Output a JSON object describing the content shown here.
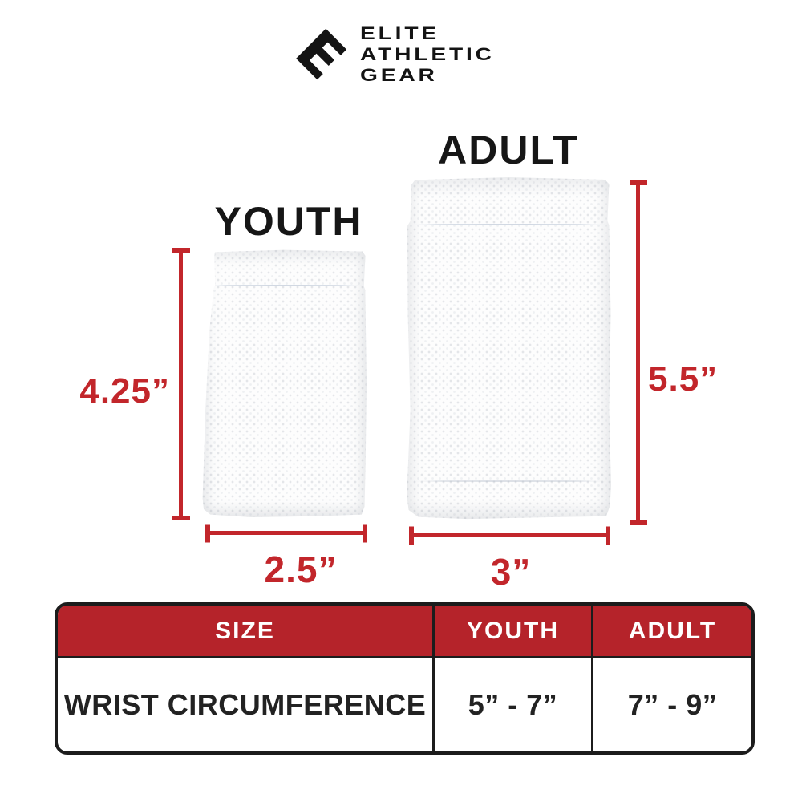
{
  "brand": {
    "logo_letter": "E",
    "name_line1": "ELITE",
    "name_line2": "ATHLETIC",
    "name_line3": "GEAR"
  },
  "diagram": {
    "adult_label": "ADULT",
    "youth_label": "YOUTH",
    "youth_height": "4.25”",
    "youth_width": "2.5”",
    "adult_height": "5.5”",
    "adult_width": "3”"
  },
  "size_table": {
    "header": {
      "size": "SIZE",
      "youth": "YOUTH",
      "adult": "ADULT"
    },
    "row": {
      "label": "WRIST CIRCUMFERENCE",
      "youth": "5” - 7”",
      "adult": "7” - 9”"
    }
  },
  "chart_data": {
    "type": "table",
    "columns": [
      "SIZE",
      "YOUTH",
      "ADULT"
    ],
    "rows": [
      [
        "WRIST CIRCUMFERENCE",
        "5” - 7”",
        "7” - 9”"
      ]
    ],
    "annotations": {
      "youth_height_in": "4.25”",
      "youth_width_in": "2.5”",
      "adult_height_in": "5.5”",
      "adult_width_in": "3”"
    }
  },
  "colors": {
    "accent_red": "#c2262b",
    "table_header_red": "#b5232a",
    "ink": "#1a1a1a",
    "background": "#ffffff"
  }
}
